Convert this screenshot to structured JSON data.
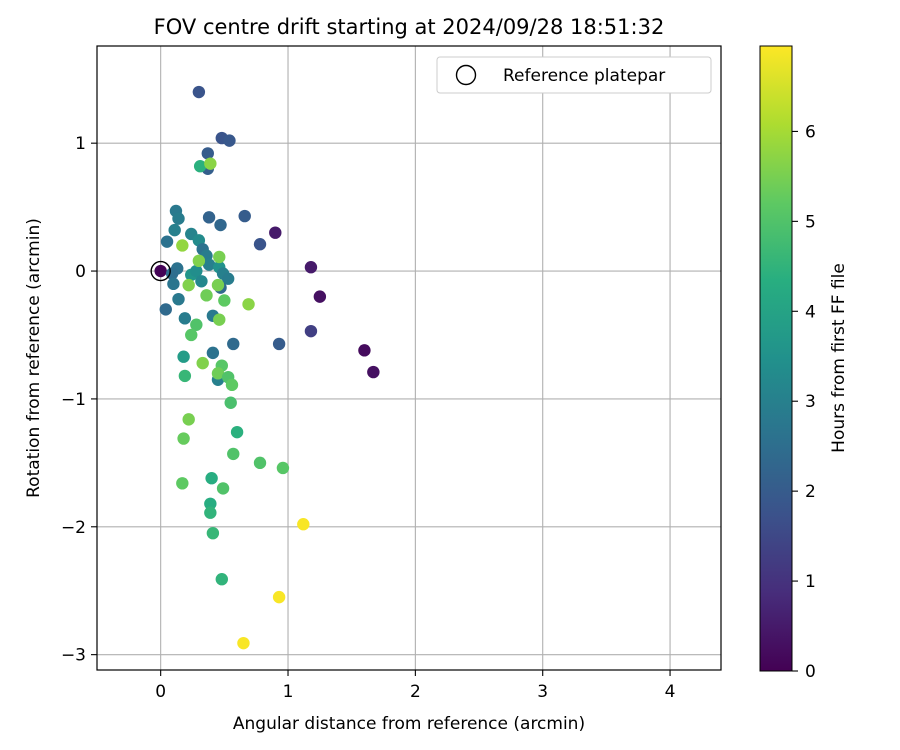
{
  "chart_data": {
    "type": "scatter",
    "title": "FOV centre drift starting at 2024/09/28 18:51:32",
    "xlabel": "Angular distance from reference (arcmin)",
    "ylabel": "Rotation from reference (arcmin)",
    "xlim": [
      -0.5,
      4.4
    ],
    "ylim": [
      -3.12,
      1.76
    ],
    "x_ticks": [
      0,
      1,
      2,
      3,
      4
    ],
    "x_tick_labels": [
      "0",
      "1",
      "2",
      "3",
      "4"
    ],
    "y_ticks": [
      -3,
      -2,
      -1,
      0,
      1
    ],
    "y_tick_labels": [
      "−3",
      "−2",
      "−1",
      "0",
      "1"
    ],
    "grid": true,
    "legend": {
      "position": "top-right",
      "entries": [
        {
          "label": "Reference platepar",
          "marker": "open-circle"
        }
      ]
    },
    "colorbar": {
      "label": "Hours from first FF file",
      "colormap": "viridis",
      "range": [
        0,
        6.95
      ],
      "ticks": [
        0,
        1,
        2,
        3,
        4,
        5,
        6
      ],
      "tick_labels": [
        "0",
        "1",
        "2",
        "3",
        "4",
        "5",
        "6"
      ]
    },
    "reference_point": {
      "x": 0,
      "y": 0
    },
    "points": [
      {
        "x": 0.0,
        "y": 0.0,
        "c": 0.05
      },
      {
        "x": 0.9,
        "y": 0.3,
        "c": 0.5
      },
      {
        "x": 1.18,
        "y": 0.03,
        "c": 0.5
      },
      {
        "x": 1.25,
        "y": -0.2,
        "c": 0.3
      },
      {
        "x": 1.6,
        "y": -0.62,
        "c": 0.2
      },
      {
        "x": 1.67,
        "y": -0.79,
        "c": 0.3
      },
      {
        "x": 1.18,
        "y": -0.47,
        "c": 1.3
      },
      {
        "x": 0.3,
        "y": 1.4,
        "c": 1.8
      },
      {
        "x": 0.48,
        "y": 1.04,
        "c": 1.8
      },
      {
        "x": 0.54,
        "y": 1.02,
        "c": 1.9
      },
      {
        "x": 0.37,
        "y": 0.92,
        "c": 2.0
      },
      {
        "x": 0.37,
        "y": 0.8,
        "c": 2.1
      },
      {
        "x": 0.38,
        "y": 0.42,
        "c": 2.2
      },
      {
        "x": 0.66,
        "y": 0.43,
        "c": 2.0
      },
      {
        "x": 0.47,
        "y": 0.36,
        "c": 2.3
      },
      {
        "x": 0.78,
        "y": 0.21,
        "c": 1.8
      },
      {
        "x": 0.93,
        "y": -0.57,
        "c": 2.0
      },
      {
        "x": 0.57,
        "y": -0.57,
        "c": 2.4
      },
      {
        "x": 0.41,
        "y": -0.64,
        "c": 2.6
      },
      {
        "x": 0.12,
        "y": 0.47,
        "c": 2.8
      },
      {
        "x": 0.14,
        "y": 0.41,
        "c": 2.9
      },
      {
        "x": 0.11,
        "y": 0.32,
        "c": 3.0
      },
      {
        "x": 0.05,
        "y": 0.23,
        "c": 2.6
      },
      {
        "x": 0.24,
        "y": 0.29,
        "c": 3.1
      },
      {
        "x": 0.3,
        "y": 0.24,
        "c": 3.3
      },
      {
        "x": 0.33,
        "y": 0.17,
        "c": 2.6
      },
      {
        "x": 0.36,
        "y": 0.12,
        "c": 2.9
      },
      {
        "x": 0.13,
        "y": 0.02,
        "c": 2.6
      },
      {
        "x": 0.09,
        "y": -0.02,
        "c": 2.5
      },
      {
        "x": 0.1,
        "y": -0.1,
        "c": 2.7
      },
      {
        "x": 0.14,
        "y": -0.22,
        "c": 2.8
      },
      {
        "x": 0.04,
        "y": -0.3,
        "c": 2.4
      },
      {
        "x": 0.19,
        "y": -0.37,
        "c": 2.9
      },
      {
        "x": 0.24,
        "y": -0.03,
        "c": 3.6
      },
      {
        "x": 0.28,
        "y": 0.0,
        "c": 3.4
      },
      {
        "x": 0.32,
        "y": -0.08,
        "c": 3.2
      },
      {
        "x": 0.38,
        "y": 0.05,
        "c": 3.0
      },
      {
        "x": 0.46,
        "y": 0.03,
        "c": 3.5
      },
      {
        "x": 0.49,
        "y": -0.02,
        "c": 3.0
      },
      {
        "x": 0.53,
        "y": -0.06,
        "c": 2.9
      },
      {
        "x": 0.47,
        "y": -0.13,
        "c": 2.4
      },
      {
        "x": 0.41,
        "y": -0.35,
        "c": 2.8
      },
      {
        "x": 0.45,
        "y": -0.85,
        "c": 3.0
      },
      {
        "x": 0.18,
        "y": -0.67,
        "c": 3.8
      },
      {
        "x": 0.19,
        "y": -0.82,
        "c": 4.6
      },
      {
        "x": 0.31,
        "y": 0.82,
        "c": 4.4
      },
      {
        "x": 0.39,
        "y": 0.84,
        "c": 5.7
      },
      {
        "x": 0.17,
        "y": 0.2,
        "c": 5.8
      },
      {
        "x": 0.3,
        "y": 0.08,
        "c": 5.6
      },
      {
        "x": 0.46,
        "y": 0.11,
        "c": 5.5
      },
      {
        "x": 0.22,
        "y": -0.11,
        "c": 5.6
      },
      {
        "x": 0.36,
        "y": -0.19,
        "c": 5.4
      },
      {
        "x": 0.45,
        "y": -0.11,
        "c": 5.5
      },
      {
        "x": 0.5,
        "y": -0.23,
        "c": 5.2
      },
      {
        "x": 0.69,
        "y": -0.26,
        "c": 5.7
      },
      {
        "x": 0.46,
        "y": -0.38,
        "c": 5.5
      },
      {
        "x": 0.28,
        "y": -0.42,
        "c": 5.0
      },
      {
        "x": 0.24,
        "y": -0.5,
        "c": 5.1
      },
      {
        "x": 0.33,
        "y": -0.72,
        "c": 5.6
      },
      {
        "x": 0.48,
        "y": -0.74,
        "c": 5.1
      },
      {
        "x": 0.45,
        "y": -0.8,
        "c": 5.4
      },
      {
        "x": 0.53,
        "y": -0.83,
        "c": 5.0
      },
      {
        "x": 0.56,
        "y": -0.89,
        "c": 5.2
      },
      {
        "x": 0.55,
        "y": -1.03,
        "c": 4.9
      },
      {
        "x": 0.22,
        "y": -1.16,
        "c": 5.5
      },
      {
        "x": 0.6,
        "y": -1.26,
        "c": 4.4
      },
      {
        "x": 0.18,
        "y": -1.31,
        "c": 5.3
      },
      {
        "x": 0.57,
        "y": -1.43,
        "c": 5.0
      },
      {
        "x": 0.78,
        "y": -1.5,
        "c": 5.0
      },
      {
        "x": 0.96,
        "y": -1.54,
        "c": 5.1
      },
      {
        "x": 0.4,
        "y": -1.62,
        "c": 4.3
      },
      {
        "x": 0.17,
        "y": -1.66,
        "c": 5.2
      },
      {
        "x": 0.49,
        "y": -1.7,
        "c": 5.0
      },
      {
        "x": 0.39,
        "y": -1.82,
        "c": 4.3
      },
      {
        "x": 0.39,
        "y": -1.89,
        "c": 4.5
      },
      {
        "x": 0.41,
        "y": -2.05,
        "c": 4.6
      },
      {
        "x": 0.48,
        "y": -2.41,
        "c": 4.5
      },
      {
        "x": 1.12,
        "y": -1.98,
        "c": 6.9
      },
      {
        "x": 0.93,
        "y": -2.55,
        "c": 6.9
      },
      {
        "x": 0.65,
        "y": -2.91,
        "c": 6.9
      }
    ]
  }
}
